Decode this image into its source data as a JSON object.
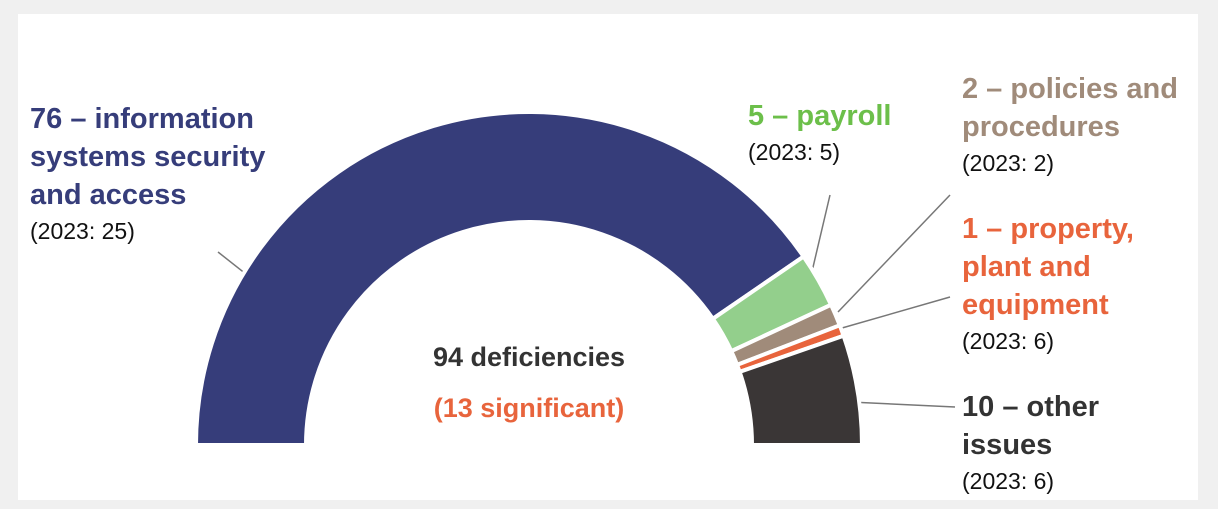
{
  "chart_data": {
    "type": "pie",
    "categories": [
      "information systems security and access",
      "payroll",
      "policies and procedures",
      "property, plant and equipment",
      "other issues"
    ],
    "values": [
      76,
      5,
      2,
      1,
      10
    ],
    "value_labels": [
      "76 – information systems security and access",
      "5 – payroll",
      "2 – policies and procedures",
      "1 – property, plant and equipment",
      "10 – other issues"
    ],
    "comparisons": [
      "(2023: 25)",
      "(2023: 5)",
      "(2023: 2)",
      "(2023: 6)",
      "(2023: 6)"
    ],
    "colors": [
      "#363d7a",
      "#93cf8c",
      "#a08b7a",
      "#e8643c",
      "#3a3636"
    ],
    "label_colors": [
      "#363d7a",
      "#6cbf4a",
      "#a08b7a",
      "#e8643c",
      "#333333"
    ],
    "total_label": "94 deficiencies",
    "subtotal_label": "(13 significant)",
    "half": true
  }
}
